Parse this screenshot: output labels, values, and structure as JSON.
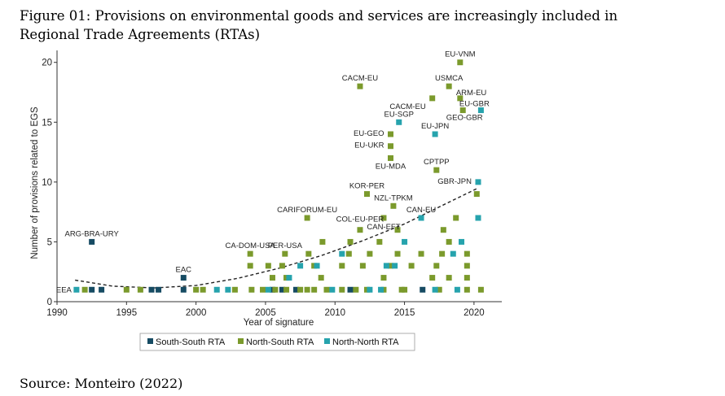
{
  "figure": {
    "title": "Figure 01: Provisions on environmental goods and services are increasingly included in Regional Trade Agreements (RTAs)",
    "source": "Source: Monteiro (2022)"
  },
  "chart_data": {
    "type": "scatter",
    "title": "",
    "xlabel": "Year of signature",
    "ylabel": "Number of provisions related to EGS",
    "xlim": [
      1990,
      2022
    ],
    "ylim": [
      0,
      21
    ],
    "xticks": [
      1990,
      1995,
      2000,
      2005,
      2010,
      2015,
      2020
    ],
    "yticks": [
      0,
      5,
      10,
      15,
      20
    ],
    "grid": false,
    "legend_position": "bottom",
    "trend": {
      "style": "dashed",
      "x": [
        1991.3,
        1994,
        1997,
        2000,
        2003,
        2006,
        2009,
        2012,
        2015,
        2018,
        2020.3
      ],
      "y": [
        1.8,
        1.3,
        1.15,
        1.35,
        1.95,
        2.8,
        3.85,
        5.1,
        6.5,
        8.2,
        9.5
      ]
    },
    "series": [
      {
        "name": "South-South RTA",
        "color": "#164b63",
        "points": [
          [
            1992.5,
            1
          ],
          [
            1993.2,
            1
          ],
          [
            1996.8,
            1
          ],
          [
            1997.3,
            1
          ],
          [
            1999.1,
            1
          ],
          [
            2005.5,
            1
          ],
          [
            2006.2,
            1
          ],
          [
            2007.2,
            1
          ],
          [
            2011.1,
            1
          ],
          [
            2016.3,
            1
          ],
          [
            1992.5,
            5,
            "ARG-BRA-URY"
          ],
          [
            1999.1,
            2,
            "EAC"
          ]
        ]
      },
      {
        "name": "North-South RTA",
        "color": "#7b9a2c",
        "points": [
          [
            1992,
            1
          ],
          [
            1995,
            1
          ],
          [
            1996,
            1
          ],
          [
            2000,
            1
          ],
          [
            2000.5,
            1
          ],
          [
            2002.8,
            1
          ],
          [
            2004,
            1
          ],
          [
            2004.8,
            1
          ],
          [
            2005.7,
            1
          ],
          [
            2006.5,
            1
          ],
          [
            2007.5,
            1
          ],
          [
            2008,
            1
          ],
          [
            2008.5,
            1
          ],
          [
            2009.4,
            1
          ],
          [
            2010.5,
            1
          ],
          [
            2011.5,
            1
          ],
          [
            2012.3,
            1
          ],
          [
            2013.5,
            1
          ],
          [
            2014.8,
            1
          ],
          [
            2015,
            1
          ],
          [
            2017.5,
            1
          ],
          [
            2019.5,
            1
          ],
          [
            2020.5,
            1
          ],
          [
            2005.5,
            2
          ],
          [
            2006.5,
            2
          ],
          [
            2009,
            2
          ],
          [
            2013.5,
            2
          ],
          [
            2017,
            2
          ],
          [
            2018.2,
            2
          ],
          [
            2019.5,
            2
          ],
          [
            2003.9,
            3
          ],
          [
            2005.2,
            3
          ],
          [
            2006.2,
            3
          ],
          [
            2008.5,
            3
          ],
          [
            2010.5,
            3
          ],
          [
            2012,
            3
          ],
          [
            2014,
            3
          ],
          [
            2015.5,
            3
          ],
          [
            2017.3,
            3
          ],
          [
            2019.5,
            3
          ],
          [
            2003.9,
            4,
            "CA-DOM-USA"
          ],
          [
            2006.4,
            4,
            "PER-USA"
          ],
          [
            2008.1,
            4
          ],
          [
            2011,
            4
          ],
          [
            2012.5,
            4
          ],
          [
            2014.5,
            4
          ],
          [
            2016.2,
            4
          ],
          [
            2017.7,
            4
          ],
          [
            2019.5,
            4
          ],
          [
            2009.1,
            5
          ],
          [
            2011.1,
            5
          ],
          [
            2013.2,
            5
          ],
          [
            2018.2,
            5
          ],
          [
            2011.8,
            6,
            "COL-EU-PER"
          ],
          [
            2014.5,
            6
          ],
          [
            2017.8,
            6
          ],
          [
            2013.5,
            7,
            "CAN-EFT"
          ],
          [
            2008,
            7,
            "CARIFORUM-EU"
          ],
          [
            2018.7,
            7
          ],
          [
            2014.2,
            8,
            "NZL-TPKM"
          ],
          [
            2012.3,
            9,
            "KOR-PER"
          ],
          [
            2020.2,
            9
          ],
          [
            2017.3,
            11,
            "CPTPP"
          ],
          [
            2014,
            12,
            "EU-MDA"
          ],
          [
            2014,
            13,
            "EU-UKR"
          ],
          [
            2014,
            14,
            "EU-GEO"
          ],
          [
            2017,
            17,
            "CACM-EU"
          ],
          [
            2019.2,
            16,
            "GEO-GBR"
          ],
          [
            2018.2,
            18,
            "USMCA"
          ],
          [
            2019,
            17,
            "ARM-EU"
          ],
          [
            2011.8,
            18,
            "CACM-EU"
          ],
          [
            2019,
            20,
            "EU-VNM"
          ]
        ]
      },
      {
        "name": "North-North RTA",
        "color": "#26a3ad",
        "points": [
          [
            1991.4,
            1,
            "EEA"
          ],
          [
            2001.5,
            1
          ],
          [
            2002.3,
            1
          ],
          [
            2005.2,
            1
          ],
          [
            2009.8,
            1
          ],
          [
            2012.5,
            1
          ],
          [
            2013.3,
            1
          ],
          [
            2017.2,
            1
          ],
          [
            2018.8,
            1
          ],
          [
            2020.3,
            7
          ],
          [
            2006.7,
            2
          ],
          [
            2007.5,
            3
          ],
          [
            2008.7,
            3
          ],
          [
            2013.7,
            3
          ],
          [
            2014.3,
            3
          ],
          [
            2010.5,
            4
          ],
          [
            2018.5,
            4
          ],
          [
            2015,
            5
          ],
          [
            2019.1,
            5
          ],
          [
            2016.2,
            7,
            "CAN-EU"
          ],
          [
            2020.3,
            10,
            "GBR-JPN"
          ],
          [
            2017.2,
            14,
            "EU-JPN"
          ],
          [
            2014.6,
            15,
            "EU-SGP"
          ],
          [
            2020.5,
            16,
            "EU-GBR"
          ]
        ]
      }
    ]
  },
  "legend": {
    "items": [
      {
        "label": "South-South RTA",
        "color": "#164b63"
      },
      {
        "label": "North-South RTA",
        "color": "#7b9a2c"
      },
      {
        "label": "North-North RTA",
        "color": "#26a3ad"
      }
    ]
  }
}
